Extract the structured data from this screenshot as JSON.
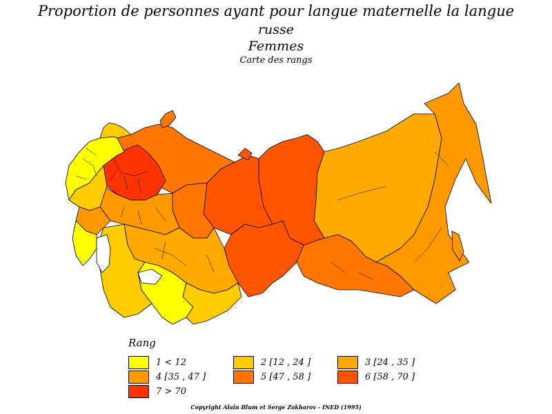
{
  "title": {
    "line1": "Proportion de personnes ayant pour langue maternelle la langue",
    "line2": "russe",
    "line3": "Femmes",
    "line4": "Carte des rangs"
  },
  "legend": {
    "title": "Rang",
    "items": [
      {
        "label": "1 < 12",
        "color": "#ffff00"
      },
      {
        "label": "2 [12 , 24 ]",
        "color": "#ffcc00"
      },
      {
        "label": "3 [24 , 35 ]",
        "color": "#ffaa00"
      },
      {
        "label": "4 [35 , 47 ]",
        "color": "#ff9900"
      },
      {
        "label": "5 [47 , 58 ]",
        "color": "#ff7700"
      },
      {
        "label": "6 [58 , 70 ]",
        "color": "#ff5500"
      },
      {
        "label": "7 > 70",
        "color": "#ff3300"
      }
    ]
  },
  "copyright": "Copyright Alain Blum et Serge Zakharov - INED (1995)"
}
